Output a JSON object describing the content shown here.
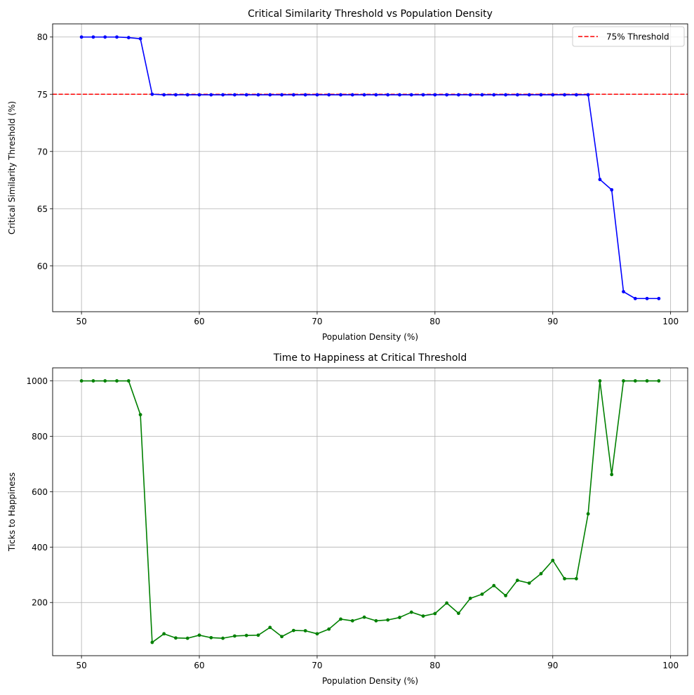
{
  "chart_data": [
    {
      "type": "line",
      "title": "Critical Similarity Threshold vs Population Density",
      "xlabel": "Population Density (%)",
      "ylabel": "Critical Similarity Threshold (%)",
      "xlim": [
        47.55,
        101.45
      ],
      "ylim": [
        56.0,
        81.15
      ],
      "xticks": [
        50,
        60,
        70,
        80,
        90,
        100
      ],
      "yticks": [
        60,
        65,
        70,
        75,
        80
      ],
      "grid": true,
      "legend": {
        "position": "upper right",
        "entries": [
          "75% Threshold"
        ]
      },
      "x": [
        50,
        51,
        52,
        53,
        54,
        55,
        56,
        57,
        58,
        59,
        60,
        61,
        62,
        63,
        64,
        65,
        66,
        67,
        68,
        69,
        70,
        71,
        72,
        73,
        74,
        75,
        76,
        77,
        78,
        79,
        80,
        81,
        82,
        83,
        84,
        85,
        86,
        87,
        88,
        89,
        90,
        91,
        92,
        93,
        94,
        95,
        96,
        97,
        98,
        99
      ],
      "series": [
        {
          "color": "#0000ff",
          "marker": "o",
          "values": [
            80.0,
            80.0,
            80.0,
            80.0,
            79.95,
            79.85,
            75.0,
            74.95,
            74.95,
            74.95,
            74.95,
            74.95,
            74.95,
            74.95,
            74.95,
            74.95,
            74.95,
            74.95,
            74.95,
            74.95,
            74.95,
            74.95,
            74.95,
            74.95,
            74.95,
            74.95,
            74.95,
            74.95,
            74.95,
            74.95,
            74.95,
            74.95,
            74.95,
            74.95,
            74.95,
            74.95,
            74.95,
            74.95,
            74.95,
            74.95,
            74.95,
            74.95,
            74.95,
            74.95,
            67.55,
            66.65,
            57.75,
            57.15,
            57.15,
            57.15
          ]
        }
      ],
      "reference_lines": [
        {
          "name": "75% Threshold",
          "y": 75,
          "color": "#ff0000",
          "style": "dashed"
        }
      ]
    },
    {
      "type": "line",
      "title": "Time to Happiness at Critical Threshold",
      "xlabel": "Population Density (%)",
      "ylabel": "Ticks to Happiness",
      "xlim": [
        47.55,
        101.45
      ],
      "ylim": [
        8.0,
        1047.0
      ],
      "xticks": [
        50,
        60,
        70,
        80,
        90,
        100
      ],
      "yticks": [
        200,
        400,
        600,
        800,
        1000
      ],
      "grid": true,
      "x": [
        50,
        51,
        52,
        53,
        54,
        55,
        56,
        57,
        58,
        59,
        60,
        61,
        62,
        63,
        64,
        65,
        66,
        67,
        68,
        69,
        70,
        71,
        72,
        73,
        74,
        75,
        76,
        77,
        78,
        79,
        80,
        81,
        82,
        83,
        84,
        85,
        86,
        87,
        88,
        89,
        90,
        91,
        92,
        93,
        94,
        95,
        96,
        97,
        98,
        99
      ],
      "series": [
        {
          "color": "#008000",
          "marker": "o",
          "values": [
            1000,
            1000,
            1000,
            1000,
            1000,
            878,
            56,
            87,
            72,
            71,
            82,
            73,
            71,
            79,
            81,
            82,
            110,
            77,
            99,
            98,
            87,
            104,
            140,
            134,
            147,
            134,
            137,
            146,
            165,
            151,
            160,
            198,
            161,
            215,
            230,
            261,
            225,
            280,
            270,
            304,
            352,
            286,
            286,
            520,
            1000,
            662,
            1000,
            1000,
            1000,
            1000
          ]
        }
      ]
    }
  ]
}
